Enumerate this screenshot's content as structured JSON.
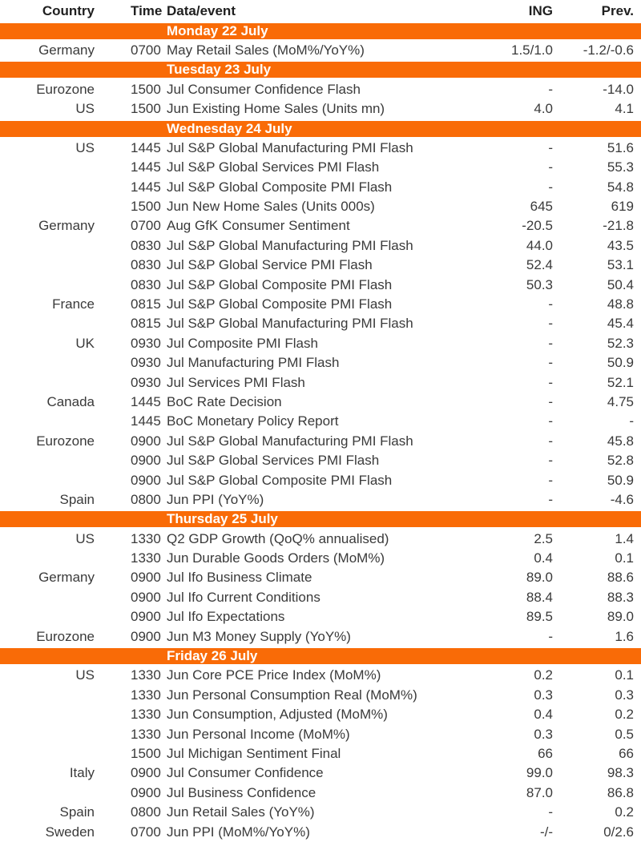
{
  "colors": {
    "accent": "#f96b07",
    "text": "#3a3a3a",
    "section_text": "#ffffff"
  },
  "headers": {
    "country": "Country",
    "time": "Time",
    "event": "Data/event",
    "ing": "ING",
    "prev": "Prev."
  },
  "sections": [
    {
      "title": "Monday 22 July",
      "rows": [
        {
          "country": "Germany",
          "time": "0700",
          "event": "May Retail Sales (MoM%/YoY%)",
          "ing": "1.5/1.0",
          "prev": "-1.2/-0.6"
        }
      ]
    },
    {
      "title": "Tuesday 23 July",
      "rows": [
        {
          "country": "Eurozone",
          "time": "1500",
          "event": "Jul Consumer Confidence Flash",
          "ing": "-",
          "prev": "-14.0"
        },
        {
          "country": "US",
          "time": "1500",
          "event": "Jun Existing Home Sales (Units mn)",
          "ing": "4.0",
          "prev": "4.1"
        }
      ]
    },
    {
      "title": "Wednesday 24 July",
      "rows": [
        {
          "country": "US",
          "time": "1445",
          "event": "Jul S&P Global Manufacturing PMI Flash",
          "ing": "-",
          "prev": "51.6"
        },
        {
          "country": "",
          "time": "1445",
          "event": "Jul S&P Global Services PMI Flash",
          "ing": "-",
          "prev": "55.3"
        },
        {
          "country": "",
          "time": "1445",
          "event": "Jul S&P Global Composite PMI Flash",
          "ing": "-",
          "prev": "54.8"
        },
        {
          "country": "",
          "time": "1500",
          "event": "Jun New Home Sales (Units 000s)",
          "ing": "645",
          "prev": "619"
        },
        {
          "country": "Germany",
          "time": "0700",
          "event": "Aug GfK Consumer Sentiment",
          "ing": "-20.5",
          "prev": "-21.8"
        },
        {
          "country": "",
          "time": "0830",
          "event": "Jul S&P Global Manufacturing PMI Flash",
          "ing": "44.0",
          "prev": "43.5"
        },
        {
          "country": "",
          "time": "0830",
          "event": "Jul S&P Global Service PMI Flash",
          "ing": "52.4",
          "prev": "53.1"
        },
        {
          "country": "",
          "time": "0830",
          "event": "Jul S&P Global Composite PMI Flash",
          "ing": "50.3",
          "prev": "50.4"
        },
        {
          "country": "France",
          "time": "0815",
          "event": "Jul S&P Global Composite PMI Flash",
          "ing": "-",
          "prev": "48.8"
        },
        {
          "country": "",
          "time": "0815",
          "event": "Jul S&P Global Manufacturing PMI Flash",
          "ing": "-",
          "prev": "45.4"
        },
        {
          "country": "UK",
          "time": "0930",
          "event": "Jul Composite PMI Flash",
          "ing": "-",
          "prev": "52.3"
        },
        {
          "country": "",
          "time": "0930",
          "event": "Jul Manufacturing PMI Flash",
          "ing": "-",
          "prev": "50.9"
        },
        {
          "country": "",
          "time": "0930",
          "event": "Jul Services PMI Flash",
          "ing": "-",
          "prev": "52.1"
        },
        {
          "country": "Canada",
          "time": "1445",
          "event": "BoC Rate Decision",
          "ing": "-",
          "prev": "4.75"
        },
        {
          "country": "",
          "time": "1445",
          "event": "BoC Monetary Policy Report",
          "ing": "-",
          "prev": "-"
        },
        {
          "country": "Eurozone",
          "time": "0900",
          "event": "Jul S&P Global Manufacturing PMI Flash",
          "ing": "-",
          "prev": "45.8"
        },
        {
          "country": "",
          "time": "0900",
          "event": "Jul S&P Global Services PMI Flash",
          "ing": "-",
          "prev": "52.8"
        },
        {
          "country": "",
          "time": "0900",
          "event": "Jul S&P Global Composite PMI Flash",
          "ing": "-",
          "prev": "50.9"
        },
        {
          "country": "Spain",
          "time": "0800",
          "event": "Jun PPI (YoY%)",
          "ing": "-",
          "prev": "-4.6"
        }
      ]
    },
    {
      "title": "Thursday 25 July",
      "rows": [
        {
          "country": "US",
          "time": "1330",
          "event": "Q2 GDP Growth (QoQ% annualised)",
          "ing": "2.5",
          "prev": "1.4"
        },
        {
          "country": "",
          "time": "1330",
          "event": "Jun Durable Goods Orders (MoM%)",
          "ing": "0.4",
          "prev": "0.1"
        },
        {
          "country": "Germany",
          "time": "0900",
          "event": "Jul Ifo Business Climate",
          "ing": "89.0",
          "prev": "88.6"
        },
        {
          "country": "",
          "time": "0900",
          "event": "Jul Ifo Current Conditions",
          "ing": "88.4",
          "prev": "88.3"
        },
        {
          "country": "",
          "time": "0900",
          "event": "Jul Ifo Expectations",
          "ing": "89.5",
          "prev": "89.0"
        },
        {
          "country": "Eurozone",
          "time": "0900",
          "event": "Jun M3 Money Supply (YoY%)",
          "ing": "-",
          "prev": "1.6"
        }
      ]
    },
    {
      "title": "Friday 26 July",
      "rows": [
        {
          "country": "US",
          "time": "1330",
          "event": "Jun Core PCE Price Index (MoM%)",
          "ing": "0.2",
          "prev": "0.1"
        },
        {
          "country": "",
          "time": "1330",
          "event": "Jun Personal Consumption Real (MoM%)",
          "ing": "0.3",
          "prev": "0.3"
        },
        {
          "country": "",
          "time": "1330",
          "event": "Jun Consumption, Adjusted (MoM%)",
          "ing": "0.4",
          "prev": "0.2"
        },
        {
          "country": "",
          "time": "1330",
          "event": "Jun Personal Income (MoM%)",
          "ing": "0.3",
          "prev": "0.5"
        },
        {
          "country": "",
          "time": "1500",
          "event": "Jul Michigan Sentiment Final",
          "ing": "66",
          "prev": "66"
        },
        {
          "country": "Italy",
          "time": "0900",
          "event": "Jul Consumer Confidence",
          "ing": "99.0",
          "prev": "98.3"
        },
        {
          "country": "",
          "time": "0900",
          "event": "Jul Business Confidence",
          "ing": "87.0",
          "prev": "86.8"
        },
        {
          "country": "Spain",
          "time": "0800",
          "event": "Jun Retail Sales (YoY%)",
          "ing": "-",
          "prev": "0.2"
        },
        {
          "country": "Sweden",
          "time": "0700",
          "event": "Jun PPI (MoM%/YoY%)",
          "ing": "-/-",
          "prev": "0/2.6"
        }
      ]
    }
  ]
}
